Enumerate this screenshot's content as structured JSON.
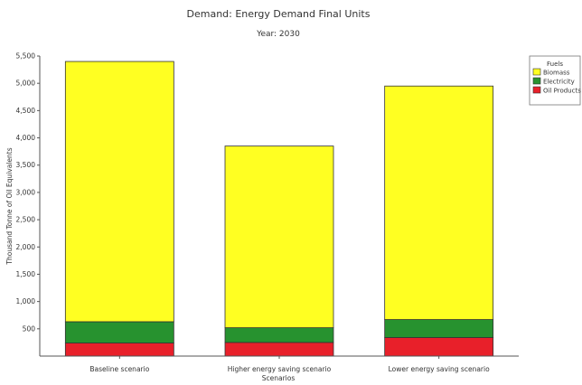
{
  "chart_data": {
    "type": "bar",
    "stacked": true,
    "title": "Demand: Energy Demand Final Units",
    "subtitle": "Year: 2030",
    "xlabel": "Scenarios",
    "ylabel": "Thousand Tonne of Oil Equivalents",
    "categories": [
      "Baseline scenario",
      "Higher energy saving scenario",
      "Lower energy saving scenario"
    ],
    "series": [
      {
        "name": "Oil Products",
        "color": "#e8202a",
        "values": [
          240,
          250,
          340
        ]
      },
      {
        "name": "Electricity",
        "color": "#27922f",
        "values": [
          390,
          270,
          330
        ]
      },
      {
        "name": "Biomass",
        "color": "#ffff22",
        "values": [
          4770,
          3330,
          4280
        ]
      }
    ],
    "ylim": [
      0,
      5500
    ],
    "yticks": [
      500,
      1000,
      1500,
      2000,
      2500,
      3000,
      3500,
      4000,
      4500,
      5000,
      5500
    ],
    "ytick_labels": [
      "500",
      "1,000",
      "1,500",
      "2,000",
      "2,500",
      "3,000",
      "3,500",
      "4,000",
      "4,500",
      "5,000",
      "5,500"
    ],
    "legend": {
      "title": "Fuels",
      "placement": "right",
      "order": [
        "Biomass",
        "Electricity",
        "Oil Products"
      ]
    },
    "grid": false
  }
}
